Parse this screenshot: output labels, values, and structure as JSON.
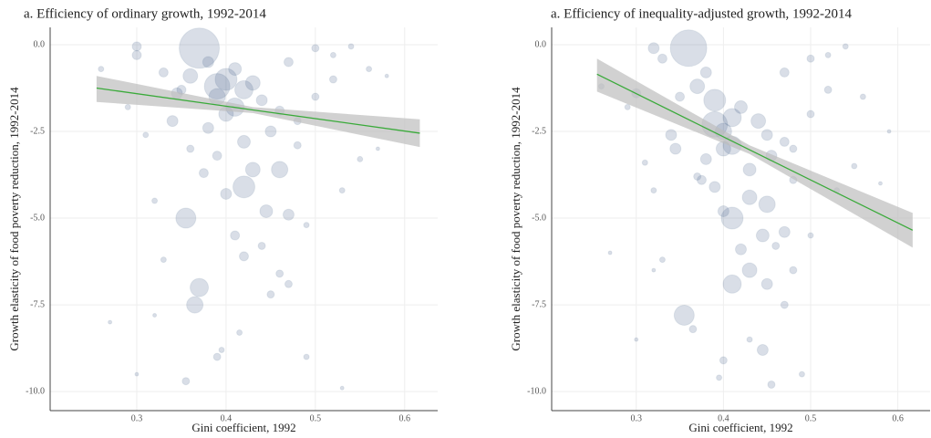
{
  "chart_data": [
    {
      "type": "scatter",
      "title": "a. Efficiency of ordinary growth, 1992-2014",
      "x_label": "Gini coefficient, 1992",
      "y_label": "Growth elasticity of food poverty reduction, 1992-2014",
      "xlim": [
        0.203,
        0.637
      ],
      "ylim": [
        -10.55,
        0.5
      ],
      "xticks": [
        0.3,
        0.4,
        0.5,
        0.6
      ],
      "yticks": [
        {
          "value": 0,
          "label": "0.0"
        },
        -2.5,
        {
          "value": -5,
          "label": "-5.0"
        },
        -7.5,
        {
          "value": -10,
          "label": "-10.0"
        }
      ],
      "grid": true,
      "series": [
        {
          "color": "#2c4a7a",
          "x": [
            0.37,
            0.4,
            0.42,
            0.36,
            0.39,
            0.41,
            0.43,
            0.38,
            0.4,
            0.44,
            0.35,
            0.38,
            0.42,
            0.46,
            0.33,
            0.39,
            0.43,
            0.46,
            0.48,
            0.5,
            0.52,
            0.3,
            0.29,
            0.26,
            0.31,
            0.34,
            0.36,
            0.42,
            0.47,
            0.4,
            0.41,
            0.355,
            0.37,
            0.365,
            0.42,
            0.44,
            0.46,
            0.49,
            0.53,
            0.55,
            0.47,
            0.33,
            0.3,
            0.355,
            0.39,
            0.415,
            0.45,
            0.49,
            0.53,
            0.5,
            0.54,
            0.47,
            0.52,
            0.56,
            0.58,
            0.27,
            0.32,
            0.375,
            0.45,
            0.39,
            0.41,
            0.3,
            0.345,
            0.48,
            0.445,
            0.395,
            0.32,
            0.57
          ],
          "values": [
            -0.1,
            -1.0,
            -1.3,
            -0.9,
            -1.5,
            -0.7,
            -1.1,
            -0.5,
            -2.0,
            -1.6,
            -1.3,
            -2.4,
            -2.8,
            -1.9,
            -0.8,
            -3.2,
            -3.6,
            -3.6,
            -2.2,
            -1.5,
            -1.0,
            -0.3,
            -1.8,
            -0.7,
            -2.6,
            -2.2,
            -3.0,
            -4.1,
            -4.9,
            -4.3,
            -5.5,
            -5.0,
            -7.0,
            -7.5,
            -6.1,
            -5.8,
            -6.6,
            -5.2,
            -4.2,
            -3.3,
            -6.9,
            -6.2,
            -9.5,
            -9.7,
            -9.0,
            -8.3,
            -7.2,
            -9.0,
            -9.9,
            -0.1,
            -0.05,
            -0.5,
            -0.3,
            -0.7,
            -0.9,
            -8.0,
            -7.8,
            -3.7,
            -2.5,
            -1.2,
            -1.8,
            -0.05,
            -1.4,
            -2.9,
            -4.8,
            -8.8,
            -4.5,
            -3.0
          ],
          "sizes": [
            22,
            12,
            10,
            8,
            9,
            7,
            8,
            6,
            8,
            6,
            5,
            6,
            7,
            5,
            5,
            5,
            8,
            9,
            4,
            4,
            4,
            5,
            3,
            3,
            3,
            6,
            4,
            12,
            6,
            6,
            5,
            11,
            10,
            9,
            5,
            4,
            4,
            3,
            3,
            3,
            4,
            3,
            2,
            4,
            4,
            3,
            4,
            3,
            2,
            4,
            3,
            5,
            3,
            3,
            2,
            2,
            2,
            5,
            6,
            14,
            10,
            5,
            6,
            4,
            7,
            3,
            3,
            2
          ]
        }
      ],
      "trend": {
        "color": "#3aaa3a",
        "band_color": "#bdbdbd",
        "x": [
          0.255,
          0.43,
          0.617
        ],
        "values": [
          -1.25,
          -1.88,
          -2.55
        ],
        "lower": [
          -1.65,
          -1.97,
          -2.95
        ],
        "upper": [
          -0.9,
          -1.8,
          -2.15
        ]
      }
    },
    {
      "type": "scatter",
      "title": "a. Efficiency of inequality-adjusted growth, 1992-2014",
      "x_label": "Gini coefficient, 1992",
      "y_label": "Growth elasticity of food poverty reduction, 1992-2014",
      "xlim": [
        0.203,
        0.637
      ],
      "ylim": [
        -10.55,
        0.5
      ],
      "xticks": [
        0.3,
        0.4,
        0.5,
        0.6
      ],
      "yticks": [
        {
          "value": 0,
          "label": "0.0"
        },
        -2.5,
        {
          "value": -5,
          "label": "-5.0"
        },
        -7.5,
        {
          "value": -10,
          "label": "-10.0"
        }
      ],
      "grid": true,
      "series": [
        {
          "color": "#2c4a7a",
          "x": [
            0.36,
            0.39,
            0.41,
            0.37,
            0.4,
            0.42,
            0.44,
            0.38,
            0.4,
            0.45,
            0.35,
            0.38,
            0.43,
            0.47,
            0.33,
            0.39,
            0.43,
            0.45,
            0.48,
            0.5,
            0.52,
            0.32,
            0.29,
            0.26,
            0.31,
            0.34,
            0.37,
            0.41,
            0.47,
            0.4,
            0.42,
            0.41,
            0.355,
            0.43,
            0.45,
            0.46,
            0.48,
            0.5,
            0.53,
            0.55,
            0.47,
            0.33,
            0.3,
            0.365,
            0.4,
            0.43,
            0.445,
            0.49,
            0.455,
            0.5,
            0.54,
            0.47,
            0.52,
            0.56,
            0.59,
            0.27,
            0.32,
            0.375,
            0.455,
            0.39,
            0.41,
            0.3,
            0.345,
            0.48,
            0.445,
            0.395,
            0.32,
            0.58
          ],
          "values": [
            -0.1,
            -1.6,
            -2.1,
            -1.2,
            -2.5,
            -1.8,
            -2.2,
            -0.8,
            -3.0,
            -2.6,
            -1.5,
            -3.3,
            -3.6,
            -2.8,
            -0.4,
            -4.1,
            -4.4,
            -4.6,
            -3.0,
            -2.0,
            -1.3,
            -0.1,
            -1.8,
            -1.2,
            -3.4,
            -2.6,
            -3.8,
            -5.0,
            -5.4,
            -4.8,
            -5.9,
            -6.9,
            -7.8,
            -6.5,
            -6.9,
            -5.8,
            -6.5,
            -5.5,
            -4.2,
            -3.5,
            -7.5,
            -6.2,
            -8.5,
            -8.2,
            -9.1,
            -8.5,
            -8.8,
            -9.5,
            -9.8,
            -0.4,
            -0.05,
            -0.8,
            -0.3,
            -1.5,
            -2.5,
            -6.0,
            -6.5,
            -3.9,
            -3.2,
            -2.3,
            -2.9,
            -1.4,
            -3.0,
            -3.9,
            -5.5,
            -9.6,
            -4.2,
            -4.0
          ],
          "sizes": [
            20,
            12,
            10,
            8,
            9,
            7,
            8,
            6,
            8,
            6,
            5,
            6,
            7,
            5,
            5,
            6,
            8,
            9,
            4,
            4,
            4,
            6,
            3,
            3,
            3,
            6,
            4,
            12,
            6,
            6,
            6,
            10,
            11,
            8,
            6,
            4,
            4,
            3,
            3,
            3,
            4,
            3,
            2,
            4,
            4,
            3,
            6,
            3,
            4,
            4,
            3,
            5,
            3,
            3,
            2,
            2,
            2,
            5,
            6,
            14,
            10,
            5,
            6,
            4,
            7,
            3,
            3,
            2
          ]
        }
      ],
      "trend": {
        "color": "#3aaa3a",
        "band_color": "#bdbdbd",
        "x": [
          0.255,
          0.43,
          0.617
        ],
        "values": [
          -0.85,
          -3.03,
          -5.35
        ],
        "lower": [
          -1.35,
          -3.15,
          -5.85
        ],
        "upper": [
          -0.4,
          -2.9,
          -4.85
        ]
      }
    }
  ]
}
